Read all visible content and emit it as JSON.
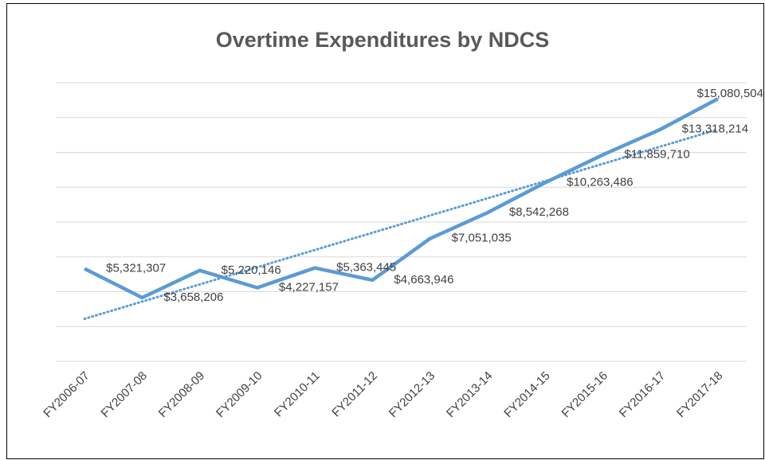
{
  "chart_data": {
    "type": "line",
    "title": "Overtime Expenditures by NDCS",
    "categories": [
      "FY2006-07",
      "FY2007-08",
      "FY2008-09",
      "FY2009-10",
      "FY2010-11",
      "FY2011-12",
      "FY2012-13",
      "FY2013-14",
      "FY2014-15",
      "FY2015-16",
      "FY2016-17",
      "FY2017-18"
    ],
    "values": [
      5321307,
      3658206,
      5220146,
      4227157,
      5363445,
      4663946,
      7051035,
      8542268,
      10263486,
      11859710,
      13318214,
      15080504
    ],
    "value_labels": [
      "$5,321,307",
      "$3,658,206",
      "$5,220,146",
      "$4,227,157",
      "$5,363,445",
      "$4,663,946",
      "$7,051,035",
      "$8,542,268",
      "$10,263,486",
      "$11,859,710",
      "$13,318,214",
      "$15,080,504"
    ],
    "color": "#5b9bd5",
    "trendline": "linear",
    "ylim": [
      0,
      16000000
    ],
    "yticks": [
      0,
      2000000,
      4000000,
      6000000,
      8000000,
      10000000,
      12000000,
      14000000,
      16000000
    ],
    "grid": true
  }
}
